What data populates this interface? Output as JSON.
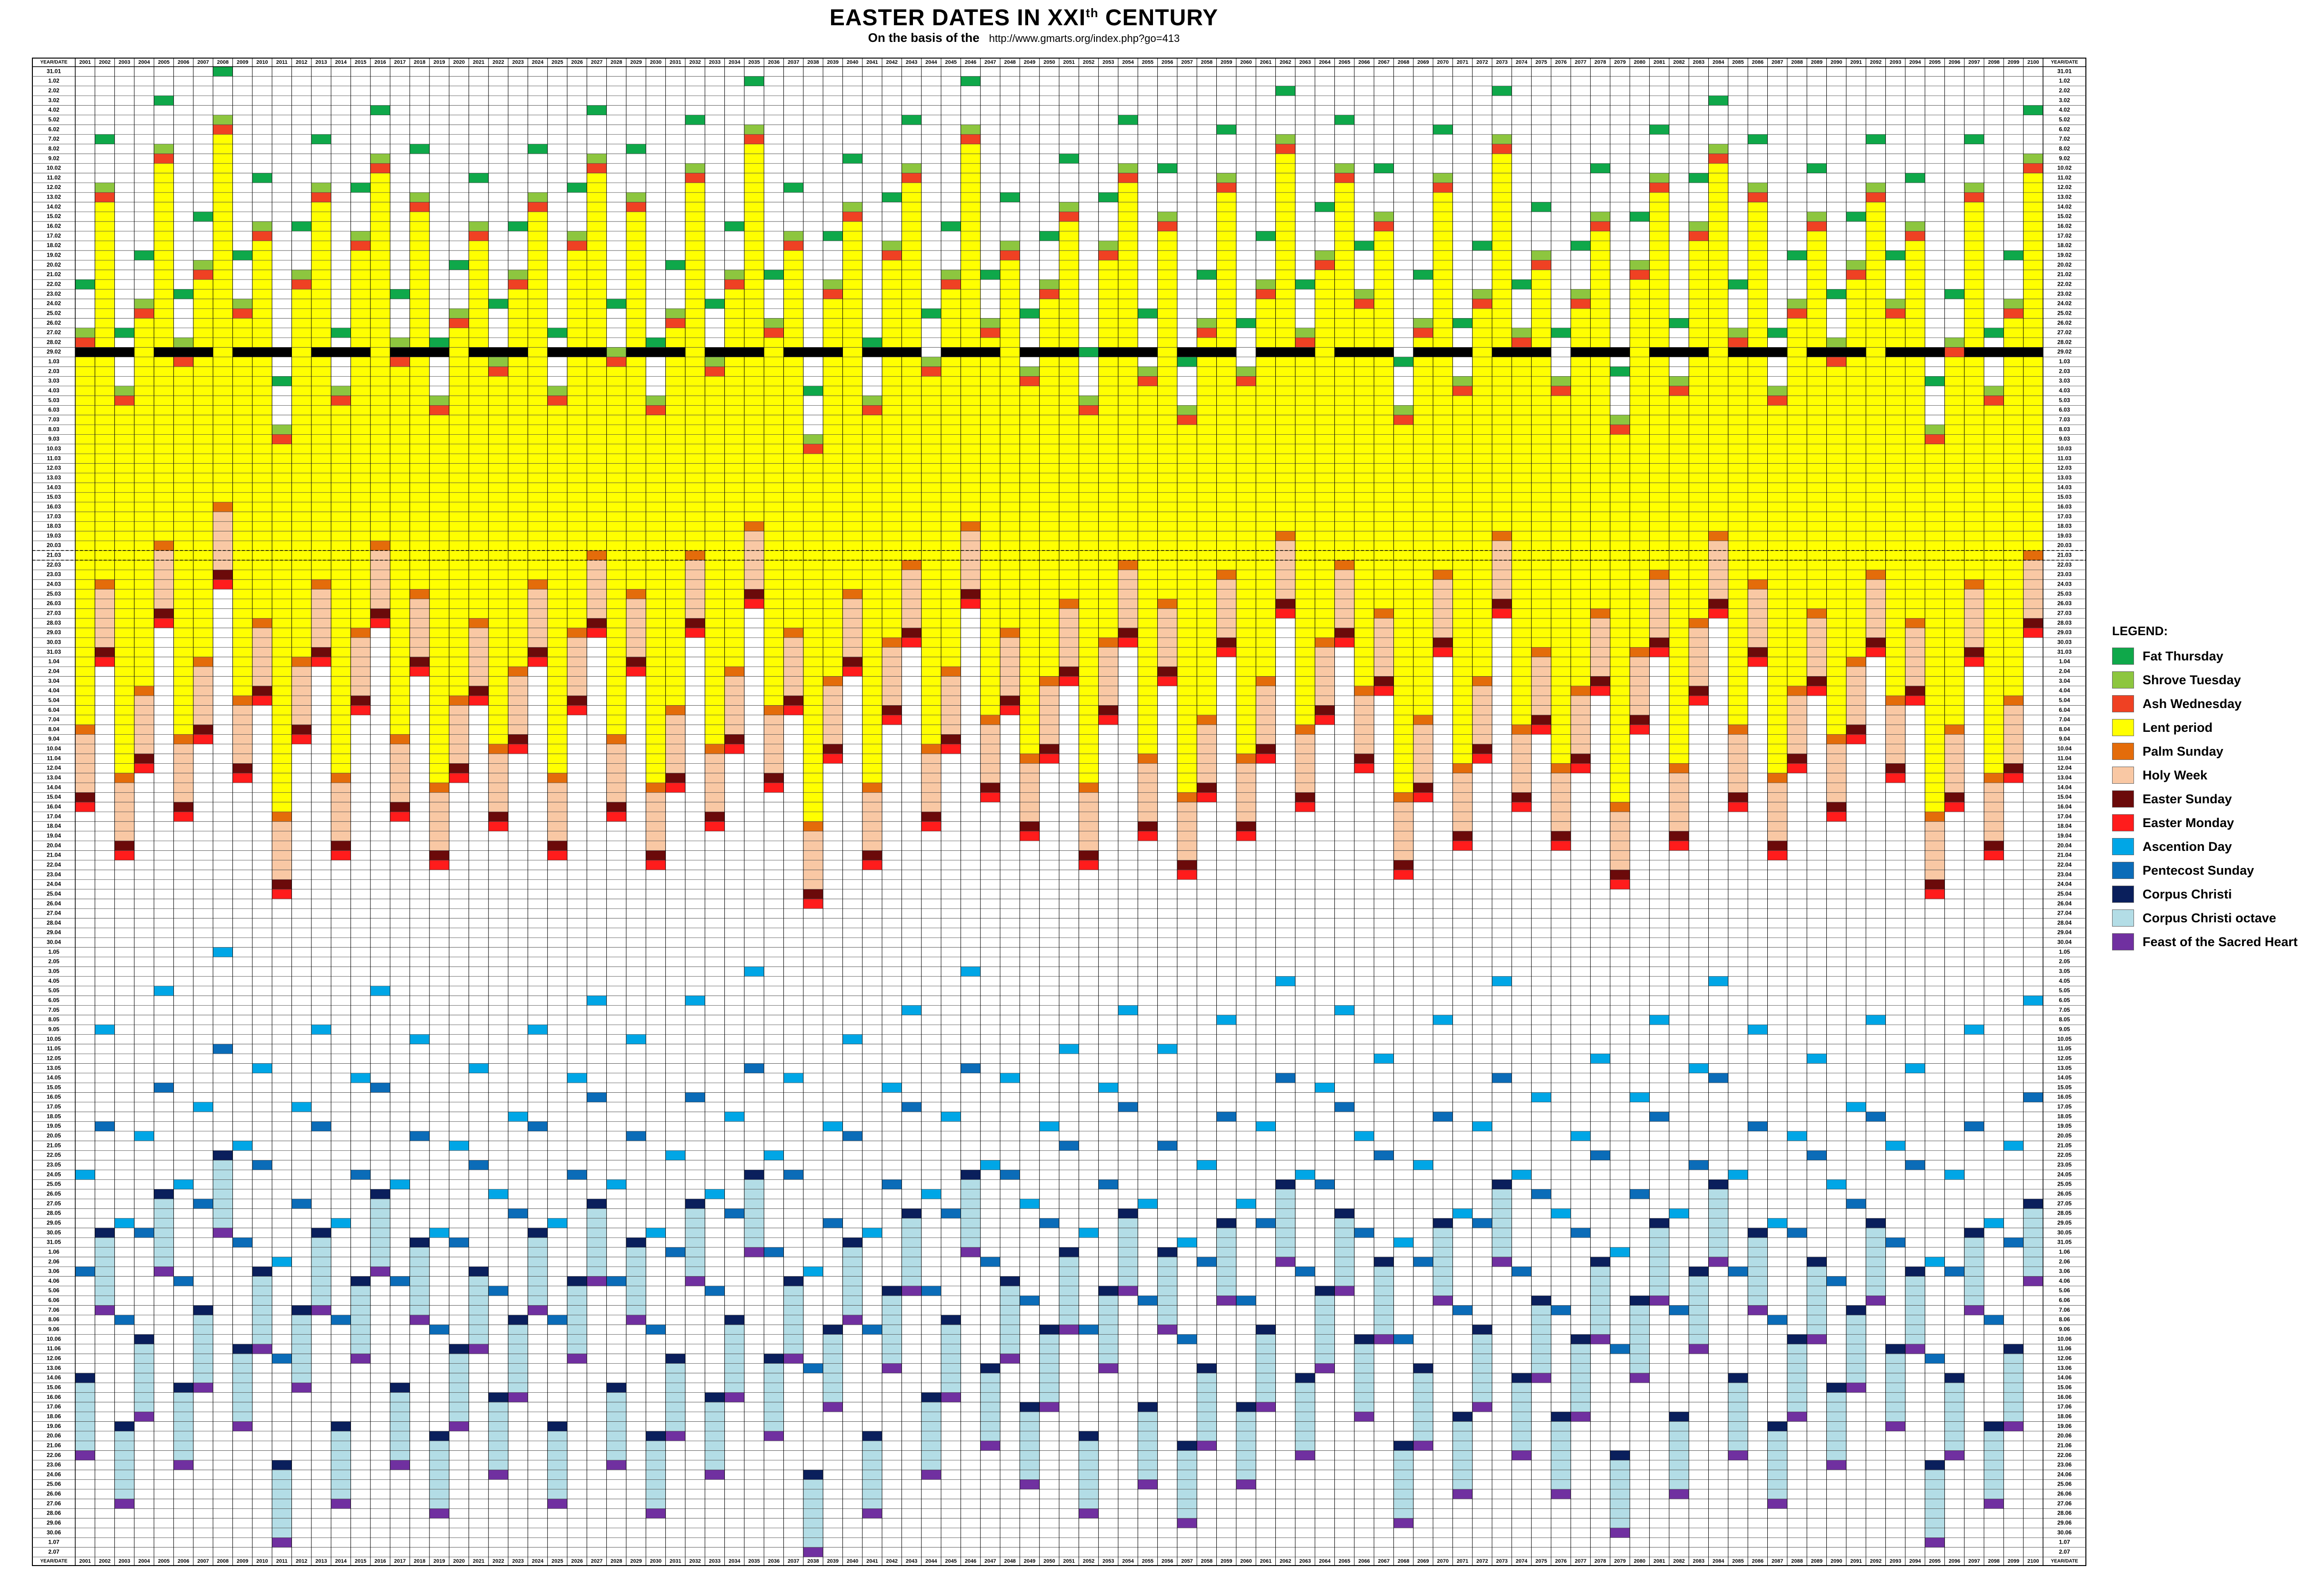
{
  "title": {
    "main": "EASTER DATES IN XXI",
    "sup": "th",
    "tail": " CENTURY"
  },
  "subtitle": {
    "text": "On the basis of the",
    "url": "http://www.gmarts.org/index.php?go=413"
  },
  "corner_label": "YEAR/DATE",
  "legend": {
    "title": "LEGEND:",
    "items": [
      {
        "label": "Fat Thursday",
        "color": "#0fa84a"
      },
      {
        "label": "Shrove Tuesday",
        "color": "#8dc63f"
      },
      {
        "label": "Ash Wednesday",
        "color": "#ef4123"
      },
      {
        "label": "Lent period",
        "color": "#ffff00"
      },
      {
        "label": "Palm Sunday",
        "color": "#e46c0a"
      },
      {
        "label": "Holy Week",
        "color": "#f9c8a4"
      },
      {
        "label": "Easter Sunday",
        "color": "#6b0a0a"
      },
      {
        "label": "Easter Monday",
        "color": "#ff1c1c"
      },
      {
        "label": "Ascention Day",
        "color": "#00a6e6"
      },
      {
        "label": "Pentecost Sunday",
        "color": "#0b6cb8"
      },
      {
        "label": "Corpus Christi",
        "color": "#0a1f5c"
      },
      {
        "label": "Corpus Christi octave",
        "color": "#b3dde6"
      },
      {
        "label": "Feast of the Sacred Heart",
        "color": "#7030a0"
      }
    ]
  },
  "years": [
    2001,
    2002,
    2003,
    2004,
    2005,
    2006,
    2007,
    2008,
    2009,
    2010,
    2011,
    2012,
    2013,
    2014,
    2015,
    2016,
    2017,
    2018,
    2019,
    2020,
    2021,
    2022,
    2023,
    2024,
    2025,
    2026,
    2027,
    2028,
    2029,
    2030,
    2031,
    2032,
    2033,
    2034,
    2035,
    2036,
    2037,
    2038,
    2039,
    2040,
    2041,
    2042,
    2043,
    2044,
    2045,
    2046,
    2047,
    2048,
    2049,
    2050,
    2051,
    2052,
    2053,
    2054,
    2055,
    2056,
    2057,
    2058,
    2059,
    2060,
    2061,
    2062,
    2063,
    2064,
    2065,
    2066,
    2067,
    2068,
    2069,
    2070,
    2071,
    2072,
    2073,
    2074,
    2075,
    2076,
    2077,
    2078,
    2079,
    2080,
    2081,
    2082,
    2083,
    2084,
    2085,
    2086,
    2087,
    2088,
    2089,
    2090,
    2091,
    2092,
    2093,
    2094,
    2095,
    2096,
    2097,
    2098,
    2099,
    2100
  ]
}
